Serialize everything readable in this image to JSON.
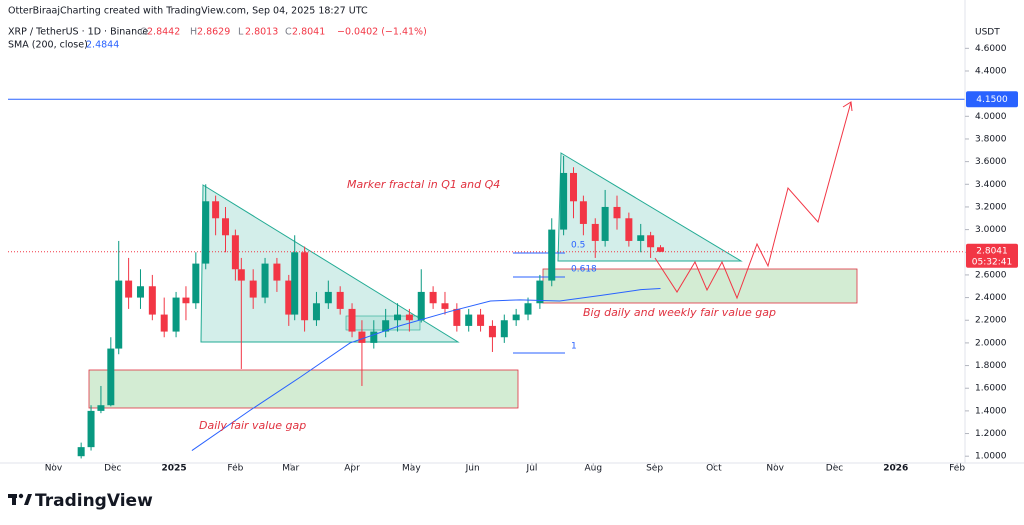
{
  "header": {
    "attribution": "OtterBiraajCharting created with TradingView.com, Sep 04, 2025 18:27 UTC",
    "symbol": "XRP / TetherUS · 1D · Binance",
    "ohlc": [
      {
        "label": "O",
        "value": "2.8442"
      },
      {
        "label": "H",
        "value": "2.8629"
      },
      {
        "label": "L",
        "value": "2.8013"
      },
      {
        "label": "C",
        "value": "2.8041"
      }
    ],
    "change": "−0.0402 (−1.41%)",
    "indicator_value": "2.4844"
  },
  "chart_data": {
    "type": "candlestick",
    "currency": "USDT",
    "up_color": "#089981",
    "down_color": "#f23645",
    "x": [
      14,
      19,
      24,
      29,
      33,
      38,
      44,
      50,
      56,
      62,
      67,
      72,
      77,
      82,
      87,
      92,
      95,
      101,
      107,
      113,
      119,
      122,
      127,
      133,
      139,
      145,
      151,
      156,
      162,
      168,
      174,
      180,
      186,
      192,
      198,
      204,
      210,
      216,
      222,
      228,
      234,
      240,
      246,
      252,
      258,
      263,
      268,
      274,
      279,
      285,
      291,
      297,
      302,
      307
    ],
    "open": [
      1.0,
      1.08,
      1.4,
      1.45,
      1.95,
      2.55,
      2.4,
      2.5,
      2.25,
      2.1,
      2.4,
      2.35,
      2.7,
      3.25,
      3.1,
      2.95,
      2.65,
      2.55,
      2.4,
      2.7,
      2.55,
      2.25,
      2.8,
      2.2,
      2.35,
      2.45,
      2.3,
      2.1,
      2.0,
      2.1,
      2.2,
      2.25,
      2.2,
      2.45,
      2.35,
      2.3,
      2.15,
      2.25,
      2.15,
      2.05,
      2.2,
      2.25,
      2.35,
      2.55,
      3.0,
      3.5,
      3.25,
      3.05,
      2.9,
      3.2,
      3.1,
      2.9,
      2.95,
      2.8442
    ],
    "high": [
      1.12,
      1.45,
      1.62,
      2.05,
      2.9,
      2.75,
      2.65,
      2.6,
      2.4,
      2.45,
      2.5,
      2.8,
      3.4,
      3.3,
      3.2,
      3.0,
      2.75,
      2.65,
      2.75,
      2.75,
      2.6,
      2.95,
      2.85,
      2.45,
      2.55,
      2.5,
      2.35,
      2.2,
      2.2,
      2.3,
      2.35,
      2.3,
      2.65,
      2.5,
      2.45,
      2.35,
      2.3,
      2.3,
      2.2,
      2.25,
      2.3,
      2.4,
      2.6,
      3.1,
      3.65,
      3.55,
      3.3,
      3.1,
      3.35,
      3.3,
      3.15,
      3.05,
      2.98,
      2.8629
    ],
    "low": [
      0.98,
      1.05,
      1.38,
      1.44,
      1.9,
      2.3,
      2.3,
      2.2,
      2.05,
      2.05,
      2.2,
      2.3,
      2.65,
      2.95,
      2.8,
      2.55,
      1.77,
      2.3,
      2.35,
      2.45,
      2.15,
      2.2,
      2.1,
      2.15,
      2.3,
      2.25,
      2.05,
      1.62,
      1.95,
      2.05,
      2.1,
      2.1,
      2.18,
      2.3,
      2.25,
      2.1,
      2.1,
      2.1,
      1.92,
      2.0,
      2.15,
      2.2,
      2.3,
      2.5,
      2.95,
      3.1,
      2.95,
      2.75,
      2.85,
      3.0,
      2.85,
      2.8,
      2.75,
      2.8013
    ],
    "close": [
      1.08,
      1.4,
      1.45,
      1.95,
      2.55,
      2.4,
      2.5,
      2.25,
      2.1,
      2.4,
      2.35,
      2.7,
      3.25,
      3.1,
      2.95,
      2.65,
      2.55,
      2.4,
      2.7,
      2.55,
      2.25,
      2.8,
      2.2,
      2.35,
      2.45,
      2.3,
      2.1,
      2.0,
      2.1,
      2.2,
      2.25,
      2.2,
      2.45,
      2.35,
      2.3,
      2.15,
      2.25,
      2.15,
      2.05,
      2.2,
      2.25,
      2.35,
      2.55,
      3.0,
      3.5,
      3.25,
      3.05,
      2.9,
      3.2,
      3.1,
      2.9,
      2.95,
      2.8442,
      2.8041
    ],
    "sma": {
      "name": "SMA (200, close)",
      "color": "#2962ff",
      "x": [
        70,
        99,
        125,
        150,
        175,
        201,
        221,
        236,
        256,
        277,
        297,
        307
      ],
      "values": [
        1.05,
        1.4,
        1.7,
        2.0,
        2.15,
        2.28,
        2.37,
        2.38,
        2.37,
        2.42,
        2.47,
        2.48
      ]
    },
    "xlim": [
      -23,
      461
    ],
    "xticks": [
      {
        "value": 0,
        "label": "Nov"
      },
      {
        "value": 30,
        "label": "Dec"
      },
      {
        "value": 61,
        "label": "2025"
      },
      {
        "value": 92,
        "label": "Feb"
      },
      {
        "value": 120,
        "label": "Mar"
      },
      {
        "value": 151,
        "label": "Apr"
      },
      {
        "value": 181,
        "label": "May"
      },
      {
        "value": 212,
        "label": "Jun"
      },
      {
        "value": 242,
        "label": "Jul"
      },
      {
        "value": 273,
        "label": "Aug"
      },
      {
        "value": 304,
        "label": "Sep"
      },
      {
        "value": 334,
        "label": "Oct"
      },
      {
        "value": 365,
        "label": "Nov"
      },
      {
        "value": 395,
        "label": "Dec"
      },
      {
        "value": 426,
        "label": "2026"
      },
      {
        "value": 457,
        "label": "Feb"
      }
    ],
    "ylim": [
      0.94,
      4.85
    ],
    "yticks": [
      {
        "value": 1.0,
        "label": "1.0000"
      },
      {
        "value": 1.2,
        "label": "1.2000"
      },
      {
        "value": 1.4,
        "label": "1.4000"
      },
      {
        "value": 1.6,
        "label": "1.6000"
      },
      {
        "value": 1.8,
        "label": "1.8000"
      },
      {
        "value": 2.0,
        "label": "2.0000"
      },
      {
        "value": 2.2,
        "label": "2.2000"
      },
      {
        "value": 2.4,
        "label": "2.4000"
      },
      {
        "value": 2.6,
        "label": "2.6000"
      },
      {
        "value": 2.8,
        "label": "2.8000"
      },
      {
        "value": 3.0,
        "label": "3.0000"
      },
      {
        "value": 3.2,
        "label": "3.2000"
      },
      {
        "value": 3.4,
        "label": "3.4000"
      },
      {
        "value": 3.6,
        "label": "3.6000"
      },
      {
        "value": 3.8,
        "label": "3.8000"
      },
      {
        "value": 4.0,
        "label": "4.0000"
      },
      {
        "value": 4.4,
        "label": "4.4000"
      },
      {
        "value": 4.6,
        "label": "4.6000"
      }
    ],
    "grid": false,
    "price_line": {
      "value": 4.15,
      "label": "4.1500",
      "color": "#2962ff"
    },
    "last_price": {
      "value": 2.8041,
      "label": "2.8041",
      "countdown": "05:32:41",
      "color": "#f23645"
    },
    "annotations": [
      "Marker fractal in Q1 and Q4",
      "Big daily and weekly fair value gap",
      "Daily fair value gap"
    ],
    "fib_labels": [
      "0.5",
      "0.618",
      "1"
    ]
  },
  "footer": {
    "brand": "TradingView"
  }
}
